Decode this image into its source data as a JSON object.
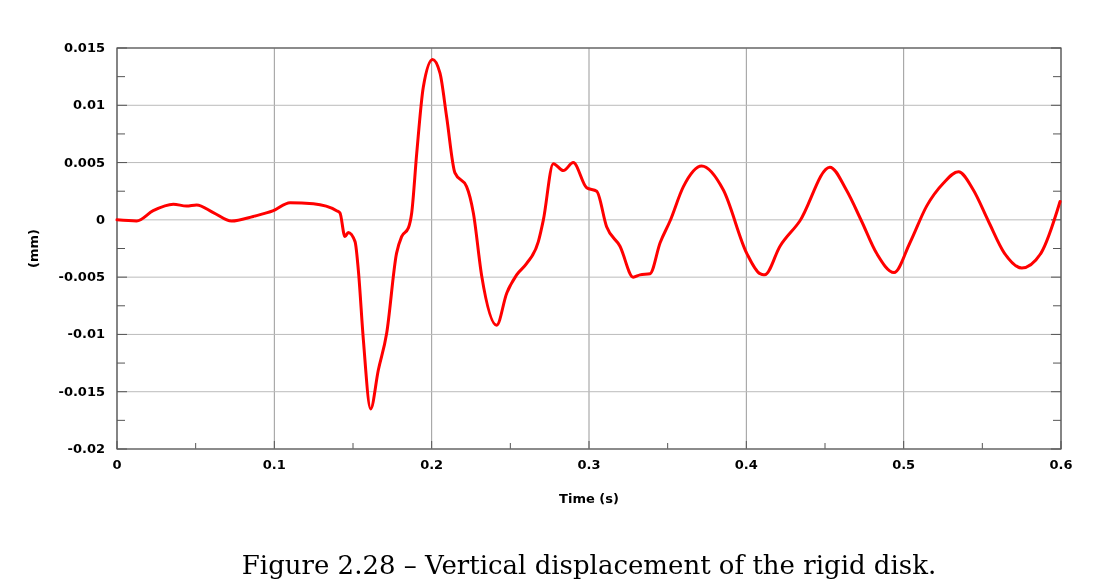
{
  "chart_data": {
    "type": "line",
    "xlabel": "Time (s)",
    "ylabel": "(mm)",
    "annotations": [
      "Figure 2.28 – Vertical displacement of the rigid disk."
    ],
    "xlim": [
      0,
      0.6
    ],
    "ylim": [
      -0.02,
      0.015
    ],
    "xticks": [
      0,
      {
        "value": 0.05,
        "label": null
      },
      0.1,
      {
        "value": 0.15,
        "label": null
      },
      0.2,
      {
        "value": 0.25,
        "label": null
      },
      0.3,
      {
        "value": 0.35,
        "label": null
      },
      0.4,
      {
        "value": 0.45,
        "label": null
      },
      0.5,
      {
        "value": 0.55,
        "label": null
      },
      0.6
    ],
    "yticks": [
      -0.02,
      {
        "value": -0.0175,
        "label": null
      },
      -0.015,
      {
        "value": -0.0125,
        "label": null
      },
      -0.01,
      {
        "value": -0.0075,
        "label": null
      },
      -0.005,
      {
        "value": -0.0025,
        "label": null
      },
      0,
      {
        "value": 0.0025,
        "label": null
      },
      0.005,
      {
        "value": 0.0075,
        "label": null
      },
      0.01,
      {
        "value": 0.0125,
        "label": null
      },
      0.015
    ],
    "grid": true,
    "line_style": "solid",
    "marker": "none",
    "series": [
      {
        "color": "#ff0000",
        "x": [
          0,
          0.0125,
          0.023,
          0.0358,
          0.0442,
          0.0506,
          0.0612,
          0.0728,
          0.0866,
          0.0994,
          0.11,
          0.1248,
          0.1396,
          0.1417,
          0.1449,
          0.147,
          0.1513,
          0.1534,
          0.1566,
          0.1612,
          0.1661,
          0.1714,
          0.1777,
          0.1809,
          0.1852,
          0.1873,
          0.1905,
          0.1947,
          0.2006,
          0.2053,
          0.2095,
          0.2148,
          0.2222,
          0.2265,
          0.2318,
          0.2413,
          0.2477,
          0.254,
          0.2604,
          0.2678,
          0.271,
          0.2773,
          0.2837,
          0.29,
          0.2985,
          0.3049,
          0.3112,
          0.3197,
          0.3281,
          0.3324,
          0.3388,
          0.3452,
          0.3515,
          0.36,
          0.3716,
          0.3854,
          0.4002,
          0.4087,
          0.4117,
          0.4214,
          0.434,
          0.4531,
          0.4636,
          0.4732,
          0.4827,
          0.4939,
          0.504,
          0.5146,
          0.5252,
          0.5348,
          0.5443,
          0.5538,
          0.564,
          0.5751,
          0.5873,
          0.5994
        ],
        "values": [
          0,
          -0.0001,
          0.0008,
          0.00137,
          0.0012,
          0.0013,
          0.00064,
          -0.0001,
          0.0003,
          0.0008,
          0.0015,
          0.0014,
          0.0008,
          0.0006,
          -0.00146,
          -0.0011,
          -0.0019,
          -0.0044,
          -0.0105,
          -0.0165,
          -0.0131,
          -0.0099,
          -0.0029,
          -0.00146,
          -0.0007,
          0.0006,
          0.0058,
          0.0116,
          0.014,
          0.0128,
          0.009,
          0.0041,
          0.0029,
          0.0006,
          -0.0049,
          -0.0092,
          -0.0064,
          -0.0048,
          -0.0038,
          -0.0019,
          0,
          0.0049,
          0.0043,
          0.005,
          0.0028,
          0.0025,
          -0.0006,
          -0.0023,
          -0.005,
          -0.0048,
          -0.0047,
          -0.002,
          -0.0001,
          0.0029,
          0.0047,
          0.0026,
          -0.0029,
          -0.0047,
          -0.0048,
          -0.0023,
          -0.0001,
          0.0046,
          0.0026,
          -0.0001,
          -0.0029,
          -0.0046,
          -0.002,
          0.0012,
          0.0032,
          0.0042,
          0.0026,
          -0.0001,
          -0.0029,
          -0.0042,
          -0.0029,
          0.0016
        ]
      }
    ]
  }
}
